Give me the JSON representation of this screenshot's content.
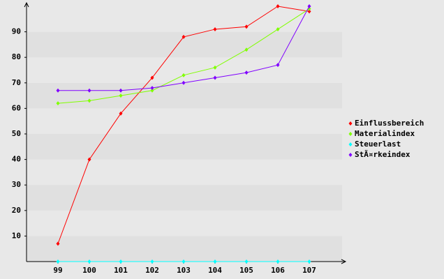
{
  "chart_data": {
    "type": "line",
    "categories": [
      "99",
      "100",
      "101",
      "102",
      "103",
      "104",
      "105",
      "106",
      "107"
    ],
    "series": [
      {
        "name": "Einflussbereich",
        "color": "#ff0000",
        "values": [
          7,
          40,
          58,
          72,
          88,
          91,
          92,
          100,
          98
        ]
      },
      {
        "name": "Materialindex",
        "color": "#80ff00",
        "values": [
          62,
          63,
          65,
          67,
          73,
          76,
          83,
          91,
          99
        ]
      },
      {
        "name": "Steuerlast",
        "color": "#00ffff",
        "values": [
          0,
          0,
          0,
          0,
          0,
          0,
          0,
          0,
          0
        ]
      },
      {
        "name": "StÃ¤rkeindex",
        "color": "#8000ff",
        "values": [
          67,
          67,
          67,
          68,
          70,
          72,
          74,
          77,
          100
        ]
      }
    ],
    "ylim": [
      0,
      100
    ],
    "yticks": [
      10,
      20,
      30,
      40,
      50,
      60,
      70,
      80,
      90
    ],
    "grid": true,
    "legend": "right"
  }
}
